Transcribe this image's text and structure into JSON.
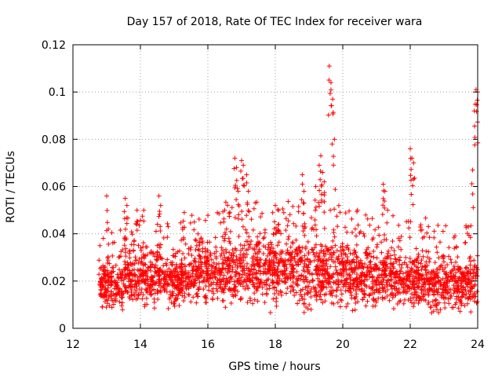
{
  "chart_data": {
    "type": "scatter",
    "title": "Day 157 of 2018, Rate Of TEC Index for receiver wara",
    "xlabel": "GPS time / hours",
    "ylabel": "ROTI / TECUs",
    "xlim": [
      12,
      24
    ],
    "ylim": [
      0,
      0.12
    ],
    "xticks": [
      12,
      14,
      16,
      18,
      20,
      22,
      24
    ],
    "yticks": [
      0,
      0.02,
      0.04,
      0.06,
      0.08,
      0.1,
      0.12
    ],
    "xtick_labels": [
      "12",
      "14",
      "16",
      "18",
      "20",
      "22",
      "24"
    ],
    "ytick_labels": [
      "0",
      "0.02",
      "0.04",
      "0.06",
      "0.08",
      "0.1",
      "0.12"
    ],
    "grid": true,
    "marker": "plus",
    "color": "#ff0000",
    "series": [
      {
        "name": "ROTI",
        "note": "dense scatter, representative points read from figure",
        "x": [
          12.8,
          13.0,
          13.05,
          13.55,
          13.6,
          13.9,
          14.1,
          14.55,
          14.6,
          15.3,
          15.6,
          16.5,
          16.8,
          16.85,
          16.9,
          17.0,
          17.05,
          17.15,
          17.2,
          18.0,
          18.1,
          18.8,
          18.85,
          19.2,
          19.3,
          19.35,
          19.4,
          19.45,
          19.6,
          19.65,
          19.7,
          19.75,
          21.2,
          21.25,
          22.0,
          22.05,
          22.1,
          23.85,
          23.9,
          23.95,
          24.0
        ],
        "y": [
          0.035,
          0.056,
          0.042,
          0.055,
          0.052,
          0.05,
          0.05,
          0.056,
          0.052,
          0.049,
          0.045,
          0.05,
          0.072,
          0.068,
          0.058,
          0.071,
          0.069,
          0.065,
          0.058,
          0.052,
          0.05,
          0.065,
          0.058,
          0.06,
          0.069,
          0.073,
          0.066,
          0.062,
          0.111,
          0.104,
          0.097,
          0.08,
          0.061,
          0.058,
          0.076,
          0.072,
          0.07,
          0.067,
          0.092,
          0.101,
          0.1
        ]
      }
    ],
    "density_bands": [
      {
        "x": [
          12.8,
          13.5
        ],
        "low": 0.004,
        "high": 0.028
      },
      {
        "x": [
          13.5,
          14.5
        ],
        "low": 0.006,
        "high": 0.034
      },
      {
        "x": [
          14.5,
          15.5
        ],
        "low": 0.006,
        "high": 0.032
      },
      {
        "x": [
          15.5,
          16.5
        ],
        "low": 0.007,
        "high": 0.036
      },
      {
        "x": [
          16.5,
          17.5
        ],
        "low": 0.006,
        "high": 0.04
      },
      {
        "x": [
          17.5,
          18.5
        ],
        "low": 0.005,
        "high": 0.04
      },
      {
        "x": [
          18.5,
          19.5
        ],
        "low": 0.003,
        "high": 0.04
      },
      {
        "x": [
          19.5,
          20.5
        ],
        "low": 0.004,
        "high": 0.038
      },
      {
        "x": [
          20.5,
          21.5
        ],
        "low": 0.005,
        "high": 0.036
      },
      {
        "x": [
          21.5,
          22.5
        ],
        "low": 0.004,
        "high": 0.034
      },
      {
        "x": [
          22.5,
          23.5
        ],
        "low": 0.003,
        "high": 0.03
      },
      {
        "x": [
          23.5,
          24.0
        ],
        "low": 0.003,
        "high": 0.03
      }
    ]
  }
}
